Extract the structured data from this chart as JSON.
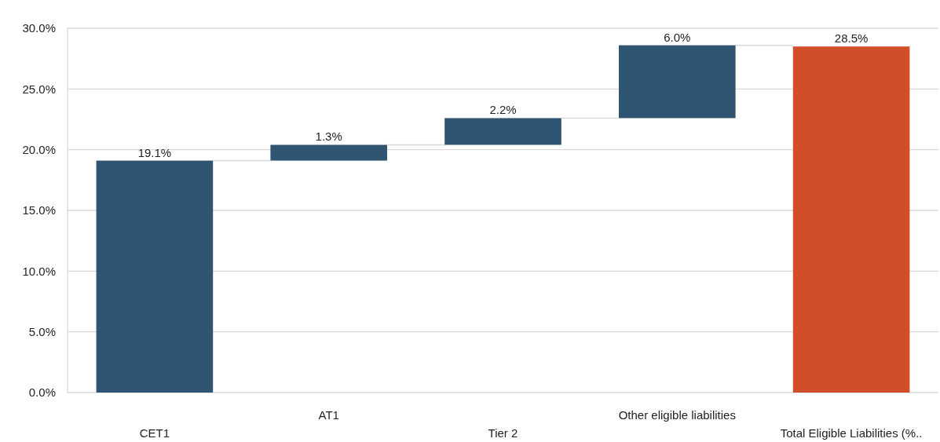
{
  "chart_data": {
    "type": "bar",
    "categories": [
      "CET1",
      "AT1",
      "Tier 2",
      "Other eligible liabilities",
      "Total Eligible Liabilities (%.."
    ],
    "values": [
      19.1,
      1.3,
      2.2,
      6.0,
      28.5
    ],
    "base": [
      0,
      19.1,
      20.4,
      22.6,
      0
    ],
    "colors": [
      "#2f5573",
      "#2f5573",
      "#2f5573",
      "#2f5573",
      "#d24e2b"
    ],
    "value_labels": [
      "19.1%",
      "1.3%",
      "2.2%",
      "6.0%",
      "28.5%"
    ],
    "ylim": [
      0,
      30
    ],
    "yticks": [
      {
        "value": 0,
        "label": "0.0%"
      },
      {
        "value": 5,
        "label": "5.0%"
      },
      {
        "value": 10,
        "label": "10.0%"
      },
      {
        "value": 15,
        "label": "15.0%"
      },
      {
        "value": 20,
        "label": "20.0%"
      },
      {
        "value": 25,
        "label": "25.0%"
      },
      {
        "value": 30,
        "label": "30.0%"
      }
    ],
    "grid": "y"
  }
}
